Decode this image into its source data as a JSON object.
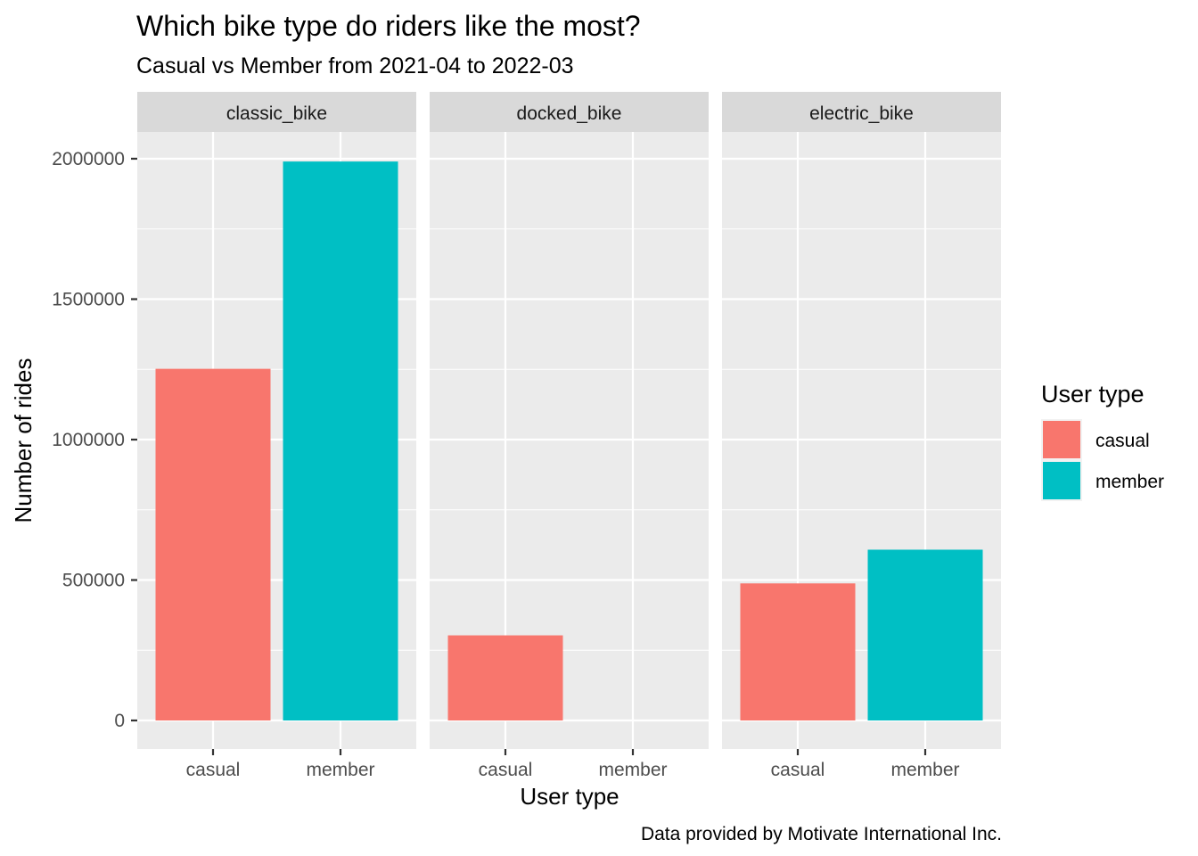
{
  "chart_data": {
    "type": "bar",
    "title": "Which bike type do riders like the most?",
    "subtitle": "Casual vs Member from 2021-04 to 2022-03",
    "xlabel": "User type",
    "ylabel": "Number of rides",
    "caption": "Data provided by Motivate International Inc.",
    "ylim": [
      0,
      2000000
    ],
    "yticks": [
      "0",
      "500000",
      "1000000",
      "1500000",
      "2000000"
    ],
    "categories": [
      "casual",
      "member"
    ],
    "facets": [
      {
        "name": "classic_bike",
        "values": [
          1252000,
          1990000
        ]
      },
      {
        "name": "docked_bike",
        "values": [
          303000,
          0
        ]
      },
      {
        "name": "electric_bike",
        "values": [
          488000,
          608000
        ]
      }
    ],
    "legend": {
      "title": "User type",
      "placement": "right",
      "entries": [
        {
          "label": "casual",
          "color": "#F8766D"
        },
        {
          "label": "member",
          "color": "#00BFC4"
        }
      ]
    },
    "colors": {
      "casual": "#F8766D",
      "member": "#00BFC4",
      "panel": "#EBEBEB",
      "strip": "#D9D9D9",
      "grid": "#FFFFFF"
    },
    "grid": true
  }
}
